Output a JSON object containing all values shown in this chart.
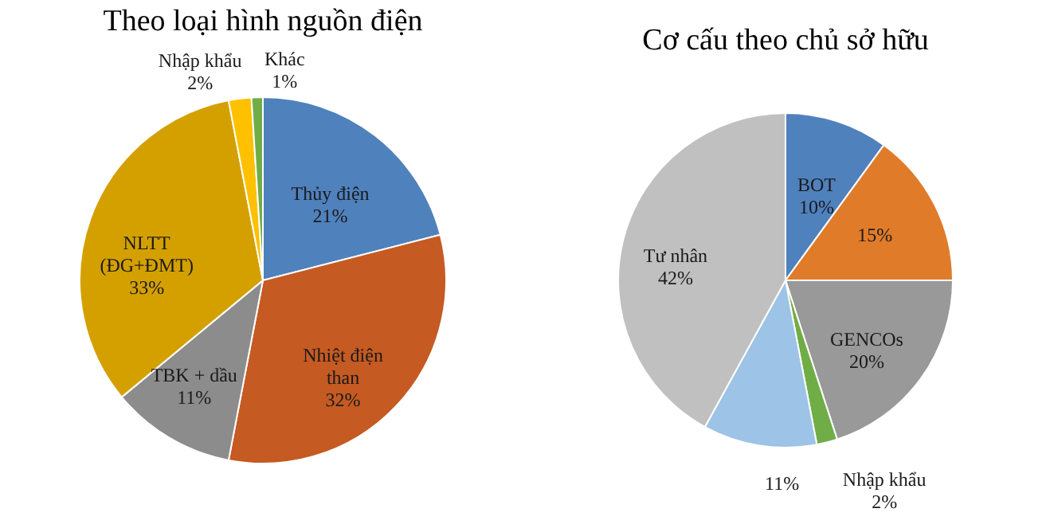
{
  "chart_data": [
    {
      "type": "pie",
      "title": "Theo loại hình nguồn điện",
      "categories": [
        "Thủy điện",
        "Nhiệt điện\nthan",
        "TBK + dầu",
        "NLTT\n(ĐG+ĐMT)",
        "Nhập khẩu",
        "Khác"
      ],
      "values": [
        21,
        32,
        11,
        33,
        2,
        1
      ],
      "value_labels": [
        "21%",
        "32%",
        "11%",
        "33%",
        "2%",
        "1%"
      ],
      "colors": [
        "#4f81bd",
        "#c55a22",
        "#8c8c8c",
        "#d4a000",
        "#ffc000",
        "#70ad47"
      ],
      "legend": false
    },
    {
      "type": "pie",
      "title": "Cơ cấu theo chủ sở hữu",
      "categories": [
        "BOT",
        null,
        "GENCOs",
        "Nhập khẩu",
        null,
        "Tư nhân"
      ],
      "values": [
        10,
        15,
        20,
        2,
        11,
        42
      ],
      "value_labels": [
        "10%",
        "15%",
        "20%",
        "2%",
        "11%",
        "42%"
      ],
      "colors": [
        "#4f81bd",
        "#e07b2a",
        "#999999",
        "#70ad47",
        "#9dc3e6",
        "#c0c0c0"
      ],
      "legend": false
    }
  ]
}
